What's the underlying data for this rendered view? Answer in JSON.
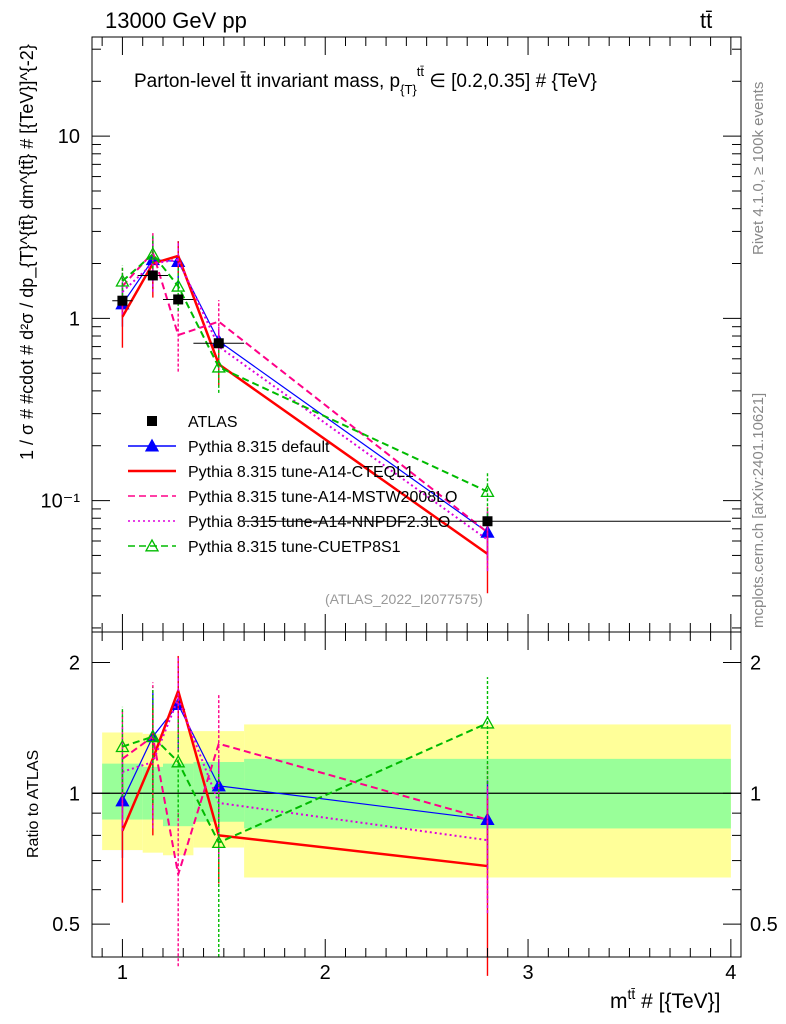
{
  "header": {
    "left_label": "13000 GeV pp",
    "right_label": "tt̄",
    "title": "Parton-level tt̄ invariant mass, p_{T}^{tt̄} ∈ [0.2,0.35] # {TeV}",
    "title_main": "Parton-level t̄t invariant mass, p",
    "title_sub": "{T}",
    "title_sup": "tt̄",
    "title_tail": " ∈ [0.2,0.35] # {TeV}",
    "side_label_top": "Rivet 4.1.0, ≥ 100k events",
    "side_label_bottom": "mcplots.cern.ch [arXiv:2401.10621]",
    "analysis_tag": "(ATLAS_2022_I2077575)"
  },
  "chart_data": [
    {
      "type": "line",
      "panel": "main",
      "yscale": "log",
      "xlabel": "m^{tt̄} # [{TeV}]",
      "xlabel_main": "m",
      "xlabel_sup": "tt̄",
      "xlabel_tail": " # [{TeV}]",
      "ylabel": "1 / σ # #cdot # d²σ / dp_{T}^{tt̄} dm^{tt̄} # [{TeV}]^{-2}",
      "xlim": [
        0.85,
        4.05
      ],
      "ylim": [
        0.019,
        35
      ],
      "ytick_labels": [
        "10",
        "1",
        "10⁻¹"
      ],
      "ytick_values": [
        10,
        1,
        0.1
      ],
      "data": {
        "name": "ATLAS",
        "x": [
          1.0,
          1.15,
          1.275,
          1.475,
          2.8
        ],
        "y": [
          1.25,
          1.72,
          1.27,
          0.73,
          0.077
        ],
        "xerr": [
          0.05,
          0.075,
          0.075,
          0.125,
          1.2
        ]
      },
      "series": [
        {
          "name": "Pythia 8.315 default",
          "color": "#0000ff",
          "style": "solid",
          "marker": "filled-triangle",
          "x": [
            1.0,
            1.15,
            1.275,
            1.475,
            2.8
          ],
          "y": [
            1.2,
            2.1,
            2.05,
            0.75,
            0.067
          ],
          "err": [
            0.3,
            0.7,
            0.6,
            0.1,
            0.02
          ]
        },
        {
          "name": "Pythia 8.315 tune-A14-CTEQL1",
          "color": "#ff0000",
          "style": "solid",
          "marker": "none",
          "x": [
            1.0,
            1.15,
            1.275,
            1.475,
            2.8
          ],
          "y": [
            1.02,
            2.0,
            2.2,
            0.56,
            0.051
          ],
          "err": [
            0.33,
            0.7,
            0.45,
            0.13,
            0.02
          ]
        },
        {
          "name": "Pythia 8.315 tune-A14-MSTW2008LO",
          "color": "#ff0088",
          "style": "dashed",
          "marker": "none",
          "x": [
            1.0,
            1.15,
            1.275,
            1.475,
            2.8
          ],
          "y": [
            1.5,
            2.3,
            0.81,
            0.96,
            0.067
          ],
          "err": [
            0.4,
            0.7,
            0.3,
            0.3,
            0.025
          ]
        },
        {
          "name": "Pythia 8.315 tune-A14-NNPDF2.3LO",
          "color": "#dd00dd",
          "style": "dotted",
          "marker": "none",
          "x": [
            1.0,
            1.15,
            1.275,
            1.475,
            2.8
          ],
          "y": [
            1.4,
            2.0,
            2.1,
            0.7,
            0.061
          ],
          "err": [
            0.35,
            0.6,
            0.5,
            0.2,
            0.02
          ]
        },
        {
          "name": "Pythia 8.315 tune-CUETP8S1",
          "color": "#00bb00",
          "style": "dashed",
          "marker": "open-triangle",
          "x": [
            1.0,
            1.15,
            1.275,
            1.475,
            2.8
          ],
          "y": [
            1.6,
            2.25,
            1.5,
            0.54,
            0.112
          ],
          "err": [
            0.35,
            0.6,
            0.4,
            0.15,
            0.03
          ]
        }
      ]
    },
    {
      "type": "line",
      "panel": "ratio",
      "yscale": "log",
      "xlabel": "m^{tt̄} # [{TeV}]",
      "ylabel": "Ratio to ATLAS",
      "xlim": [
        0.85,
        4.05
      ],
      "ylim": [
        0.42,
        2.35
      ],
      "xtick_labels": [
        "1",
        "2",
        "3",
        "4"
      ],
      "xtick_values": [
        1,
        2,
        3,
        4
      ],
      "ytick_labels": [
        "2",
        "1",
        "0.5"
      ],
      "ytick_values": [
        2,
        1,
        0.5
      ],
      "bands": [
        {
          "xlo": 0.9,
          "xhi": 1.1,
          "inner": [
            0.87,
            1.17
          ],
          "outer": [
            0.74,
            1.38
          ]
        },
        {
          "xlo": 1.1,
          "xhi": 1.2,
          "inner": [
            0.87,
            1.15
          ],
          "outer": [
            0.73,
            1.37
          ]
        },
        {
          "xlo": 1.2,
          "xhi": 1.35,
          "inner": [
            0.84,
            1.17
          ],
          "outer": [
            0.72,
            1.39
          ]
        },
        {
          "xlo": 1.35,
          "xhi": 1.6,
          "inner": [
            0.86,
            1.18
          ],
          "outer": [
            0.75,
            1.39
          ]
        },
        {
          "xlo": 1.6,
          "xhi": 4.0,
          "inner": [
            0.83,
            1.2
          ],
          "outer": [
            0.64,
            1.44
          ]
        }
      ],
      "series": [
        {
          "name": "Pythia 8.315 default",
          "color": "#0000ff",
          "style": "solid",
          "marker": "filled-triangle",
          "x": [
            1.0,
            1.15,
            1.275,
            1.475,
            2.8
          ],
          "y": [
            0.96,
            1.35,
            1.6,
            1.04,
            0.87
          ],
          "err": [
            0.25,
            0.35,
            0.35,
            0.15,
            0.2
          ]
        },
        {
          "name": "Pythia 8.315 tune-A14-CTEQL1",
          "color": "#ff0000",
          "style": "solid",
          "marker": "none",
          "x": [
            1.0,
            1.15,
            1.275,
            1.475,
            2.8
          ],
          "y": [
            0.82,
            1.2,
            1.72,
            0.8,
            0.68
          ],
          "err": [
            0.26,
            0.4,
            0.35,
            0.18,
            0.3
          ]
        },
        {
          "name": "Pythia 8.315 tune-A14-MSTW2008LO",
          "color": "#ff0088",
          "style": "dashed",
          "marker": "none",
          "x": [
            1.0,
            1.15,
            1.275,
            1.475,
            2.8
          ],
          "y": [
            1.2,
            1.35,
            0.65,
            1.3,
            0.87
          ],
          "err": [
            0.35,
            0.45,
            0.25,
            0.4,
            0.3
          ]
        },
        {
          "name": "Pythia 8.315 tune-A14-NNPDF2.3LO",
          "color": "#dd00dd",
          "style": "dotted",
          "marker": "none",
          "x": [
            1.0,
            1.15,
            1.275,
            1.475,
            2.8
          ],
          "y": [
            1.12,
            1.18,
            1.65,
            0.95,
            0.78
          ],
          "err": [
            0.3,
            0.35,
            0.4,
            0.25,
            0.25
          ]
        },
        {
          "name": "Pythia 8.315 tune-CUETP8S1",
          "color": "#00bb00",
          "style": "dashed",
          "marker": "open-triangle",
          "x": [
            1.0,
            1.15,
            1.275,
            1.475,
            2.8
          ],
          "y": [
            1.28,
            1.35,
            1.18,
            0.77,
            1.45
          ],
          "err": [
            0.3,
            0.4,
            0.3,
            0.35,
            0.4
          ]
        }
      ]
    }
  ]
}
